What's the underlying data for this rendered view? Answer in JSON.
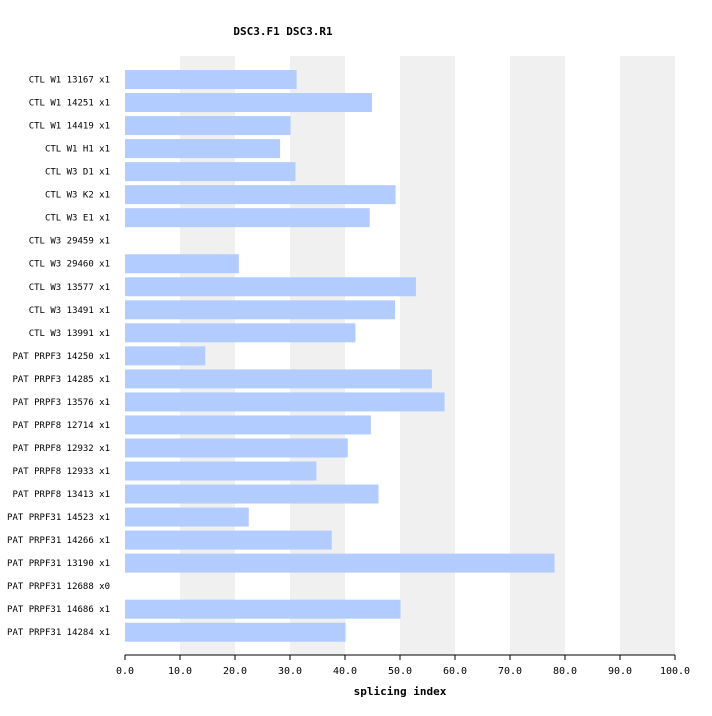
{
  "chart_data": {
    "type": "bar",
    "orientation": "horizontal",
    "title": "DSC3.F1  DSC3.R1",
    "xlabel": "splicing index",
    "ylabel": "",
    "xlim": [
      0,
      100
    ],
    "xticks": [
      "0.0",
      "10.0",
      "20.0",
      "30.0",
      "40.0",
      "50.0",
      "60.0",
      "70.0",
      "80.0",
      "90.0",
      "100.0"
    ],
    "categories": [
      "CTL W1 13167 x1",
      "CTL W1 14251 x1",
      "CTL W1 14419 x1",
      "CTL W1 H1 x1",
      "CTL W3 D1 x1",
      "CTL W3 K2 x1",
      "CTL W3 E1 x1",
      "CTL W3 29459 x1",
      "CTL W3 29460 x1",
      "CTL W3 13577 x1",
      "CTL W3 13491 x1",
      "CTL W3 13991 x1",
      "PAT PRPF3 14250 x1",
      "PAT PRPF3 14285 x1",
      "PAT PRPF3 13576 x1",
      "PAT PRPF8 12714 x1",
      "PAT PRPF8 12932 x1",
      "PAT PRPF8 12933 x1",
      "PAT PRPF8 13413 x1",
      "PAT PRPF31 14523 x1",
      "PAT PRPF31 14266 x1",
      "PAT PRPF31 13190 x1",
      "PAT PRPF31 12688 x0",
      "PAT PRPF31 14686 x1",
      "PAT PRPF31 14284 x1"
    ],
    "values": [
      31.2,
      44.9,
      30.1,
      28.2,
      31.0,
      49.2,
      44.5,
      0,
      20.7,
      52.9,
      49.1,
      41.9,
      14.6,
      55.8,
      58.1,
      44.7,
      40.5,
      34.8,
      46.1,
      22.5,
      37.6,
      78.1,
      0,
      50.1,
      40.1
    ],
    "grid": "alternating vertical bands",
    "bar_color": "#b3ccff",
    "band_color": "#f0f0f0"
  }
}
